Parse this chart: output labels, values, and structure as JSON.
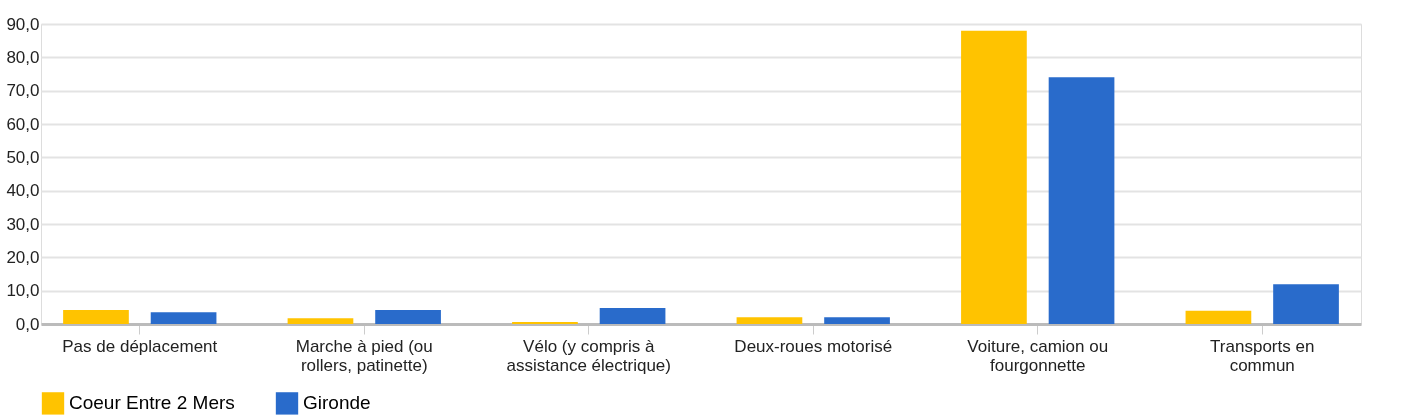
{
  "chart_data": {
    "type": "bar",
    "categories": [
      "Pas de déplacement",
      "Marche à pied (ou rollers, patinette)",
      "Vélo (y compris à assistance électrique)",
      "Deux-roues motorisé",
      "Voiture, camion ou fourgonnette",
      "Transports en commun"
    ],
    "series": [
      {
        "name": "Coeur Entre 2 Mers",
        "color": "#ffc300",
        "values": [
          4.2,
          1.7,
          0.6,
          2.0,
          88.0,
          4.0
        ]
      },
      {
        "name": "Gironde",
        "color": "#296bcb",
        "values": [
          3.5,
          4.2,
          4.8,
          2.0,
          74.0,
          11.9
        ]
      }
    ],
    "ylim": [
      0,
      90
    ],
    "yticks": [
      {
        "value": 0,
        "label": "0,0"
      },
      {
        "value": 10,
        "label": "10,0"
      },
      {
        "value": 20,
        "label": "20,0"
      },
      {
        "value": 30,
        "label": "30,0"
      },
      {
        "value": 40,
        "label": "40,0"
      },
      {
        "value": 50,
        "label": "50,0"
      },
      {
        "value": 60,
        "label": "60,0"
      },
      {
        "value": 70,
        "label": "70,0"
      },
      {
        "value": 80,
        "label": "80,0"
      },
      {
        "value": 90,
        "label": "90,0"
      }
    ],
    "grid": "y",
    "legend": "bottom"
  }
}
